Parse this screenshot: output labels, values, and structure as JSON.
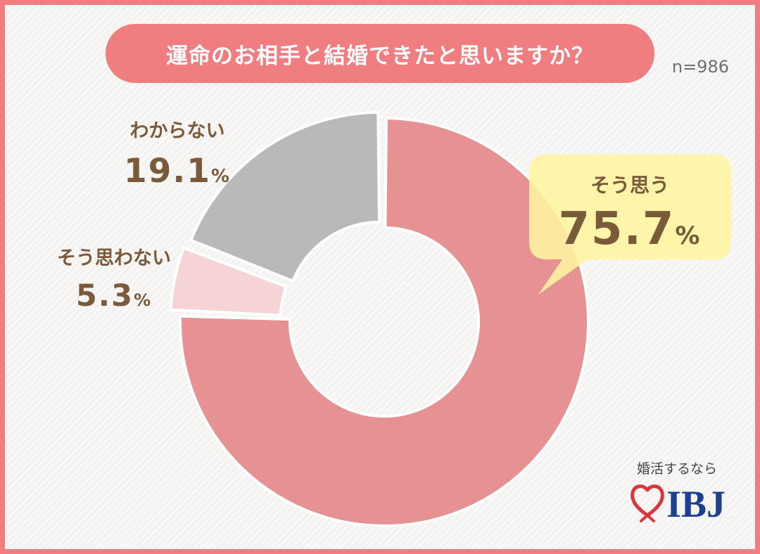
{
  "title": "運命のお相手と結婚できたと思いますか？",
  "sample_size": "n=986",
  "brand": {
    "tagline": "婚活するなら",
    "logo_text": "IBJ",
    "icon": "heart-icon"
  },
  "colors": {
    "border": "#f07e80",
    "title_bg": "#f07e80",
    "label_text": "#7a5a38",
    "callout_bg": "#fff5a0",
    "yes": "#e69192",
    "no": "#f6d3d4",
    "unknown": "#b9b9b9",
    "logo": "#1d3f8f",
    "logo_heart": "#d9363e"
  },
  "chart_data": {
    "type": "pie",
    "donut": true,
    "start": "12 o'clock",
    "direction": "clockwise",
    "categories": [
      "そう思う",
      "そう思わない",
      "わからない"
    ],
    "values": [
      75.7,
      5.3,
      19.1
    ],
    "value_labels": [
      "75.7%",
      "5.3%",
      "19.1%"
    ],
    "callout": "そう思う"
  }
}
